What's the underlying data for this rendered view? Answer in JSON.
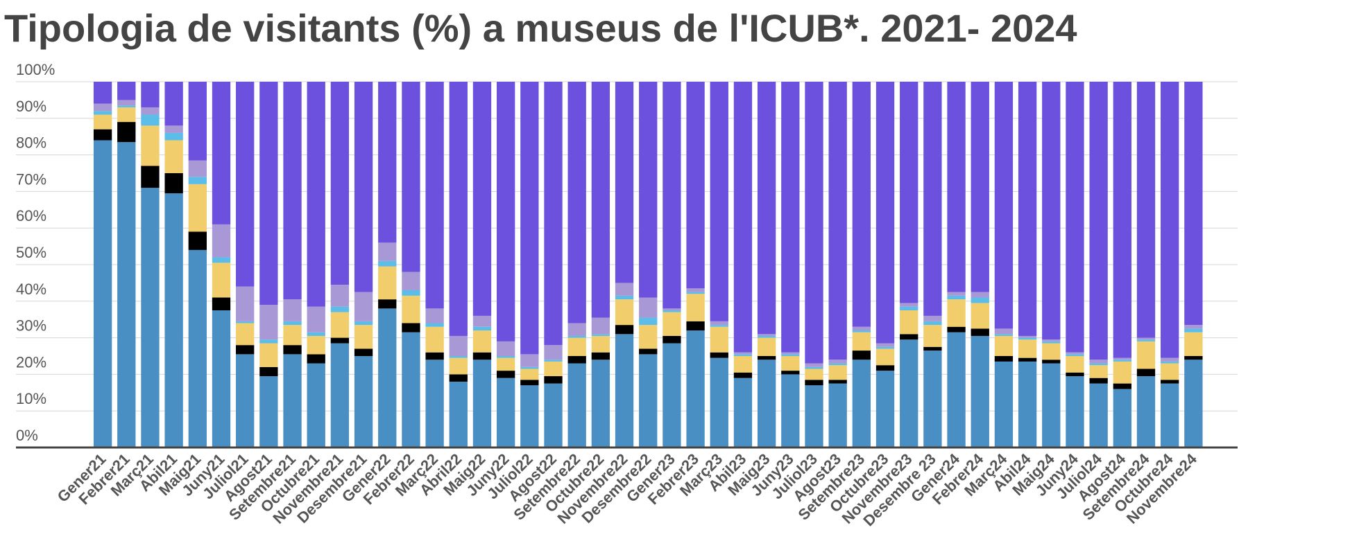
{
  "chart_data": {
    "type": "stacked_bar",
    "title": "Tipologia de visitants (%) a museus de l'ICUB*. 2021- 2024",
    "categories": [
      "Gener21",
      "Febrer21",
      "Març21",
      "Abil21",
      "Maig21",
      "Juny21",
      "Juliol21",
      "Agost21",
      "Setembre21",
      "Octubre21",
      "Novembre21",
      "Desembre21",
      "Gener22",
      "Febrer22",
      "Març22",
      "Abril22",
      "Maig22",
      "Juny22",
      "Juliol22",
      "Agost22",
      "Setembre22",
      "Octubre22",
      "Novembre22",
      "Desembre22",
      "Gener23",
      "Febrer23",
      "Març23",
      "Abil23",
      "Maig23",
      "Juny23",
      "Juliol23",
      "Agost23",
      "Setembre23",
      "Octubre23",
      "Novembre23",
      "Desembre 23",
      "Gener24",
      "Febrer24",
      "Març24",
      "Abil24",
      "Maig24",
      "Juny24",
      "Juliol24",
      "Agost24",
      "Setembre24",
      "Octubre24",
      "Novembre24"
    ],
    "series": [
      {
        "color": "#4a8fc3",
        "values": [
          84,
          83.5,
          71,
          69.5,
          54,
          37.5,
          25.5,
          19.5,
          25.5,
          23,
          28.5,
          25,
          38,
          31.5,
          24,
          18,
          24,
          19,
          17,
          17.5,
          23,
          24,
          31,
          25.5,
          28.5,
          32,
          24.5,
          19,
          24,
          20,
          17,
          17.5,
          24,
          21,
          29.5,
          26.5,
          31.5,
          30.5,
          23.5,
          23.5,
          23,
          19.5,
          17.5,
          16,
          19.5,
          17.5,
          24
        ]
      },
      {
        "color": "#000000",
        "values": [
          3,
          5.5,
          6,
          5.5,
          5,
          3.5,
          2.5,
          2.5,
          2.5,
          2.5,
          1.5,
          2,
          2.5,
          2.5,
          2,
          2,
          2,
          2,
          1.5,
          2,
          2,
          2,
          2.5,
          1.5,
          2,
          2.5,
          1.5,
          1.5,
          1,
          1,
          1.5,
          1,
          2.5,
          1.5,
          1.5,
          1,
          1.5,
          2,
          1.5,
          1,
          1,
          1,
          1.5,
          1.5,
          2,
          1,
          1
        ]
      },
      {
        "color": "#f1cd6c",
        "values": [
          4,
          4,
          11,
          9,
          13,
          9.5,
          6,
          6.5,
          5.5,
          5,
          7,
          6.5,
          9,
          7.5,
          7,
          4.5,
          6,
          3.5,
          3,
          4,
          5,
          4.5,
          7,
          6.5,
          6.5,
          7.5,
          7,
          4.5,
          5,
          4,
          3,
          4,
          5,
          4.5,
          6.5,
          6,
          7.5,
          7,
          5.5,
          5,
          4.5,
          4.5,
          3.5,
          6,
          7.5,
          4.5,
          6.5
        ]
      },
      {
        "color": "#5bbde8",
        "values": [
          1,
          0.5,
          3,
          2,
          2,
          1.5,
          0.5,
          1,
          1,
          1,
          1.5,
          1,
          1.5,
          1.5,
          1,
          0.5,
          1,
          0.5,
          0.5,
          0.5,
          0.5,
          0.5,
          1,
          2,
          0.5,
          0.5,
          0.5,
          0.5,
          0.5,
          0.5,
          0.5,
          0.5,
          0.5,
          0.5,
          1,
          1,
          1,
          1.5,
          0.5,
          0.5,
          0.5,
          0.5,
          0.5,
          0.5,
          0.5,
          0.5,
          1
        ]
      },
      {
        "color": "#a899d6",
        "values": [
          2,
          1.5,
          2,
          2,
          4.5,
          9,
          9.5,
          9.5,
          6,
          7,
          6,
          8,
          5,
          5,
          4,
          5.5,
          3,
          4,
          3.5,
          4,
          3.5,
          4.5,
          3.5,
          5.5,
          0.5,
          1,
          1,
          0.5,
          0.5,
          0.5,
          1,
          1,
          1,
          1,
          1,
          1.5,
          1,
          1.5,
          1.5,
          0.5,
          0.5,
          0.5,
          1,
          0.5,
          0.5,
          1,
          1
        ]
      },
      {
        "color": "#6b51dd",
        "values": [
          6,
          5,
          7,
          12,
          21.5,
          39,
          56,
          61,
          59.5,
          61.5,
          55.5,
          57.5,
          44,
          52,
          62,
          69.5,
          64,
          71,
          74.5,
          72,
          66,
          64.5,
          55,
          59,
          62,
          56.5,
          65.5,
          74,
          69,
          74,
          77,
          76,
          67,
          71.5,
          60.5,
          64,
          57.5,
          57.5,
          67.5,
          69.5,
          70.5,
          74,
          76,
          75.5,
          70,
          75.5,
          66.5
        ]
      }
    ],
    "ylim": [
      0,
      100
    ],
    "yticks": [
      {
        "value": 0,
        "label": "0%"
      },
      {
        "value": 10,
        "label": "10%"
      },
      {
        "value": 20,
        "label": "20%"
      },
      {
        "value": 30,
        "label": "30%"
      },
      {
        "value": 40,
        "label": "40%"
      },
      {
        "value": 50,
        "label": "50%"
      },
      {
        "value": 60,
        "label": "60%"
      },
      {
        "value": 70,
        "label": "70%"
      },
      {
        "value": 80,
        "label": "80%"
      },
      {
        "value": 90,
        "label": "90%"
      },
      {
        "value": 100,
        "label": "100%"
      }
    ],
    "grid": true
  }
}
